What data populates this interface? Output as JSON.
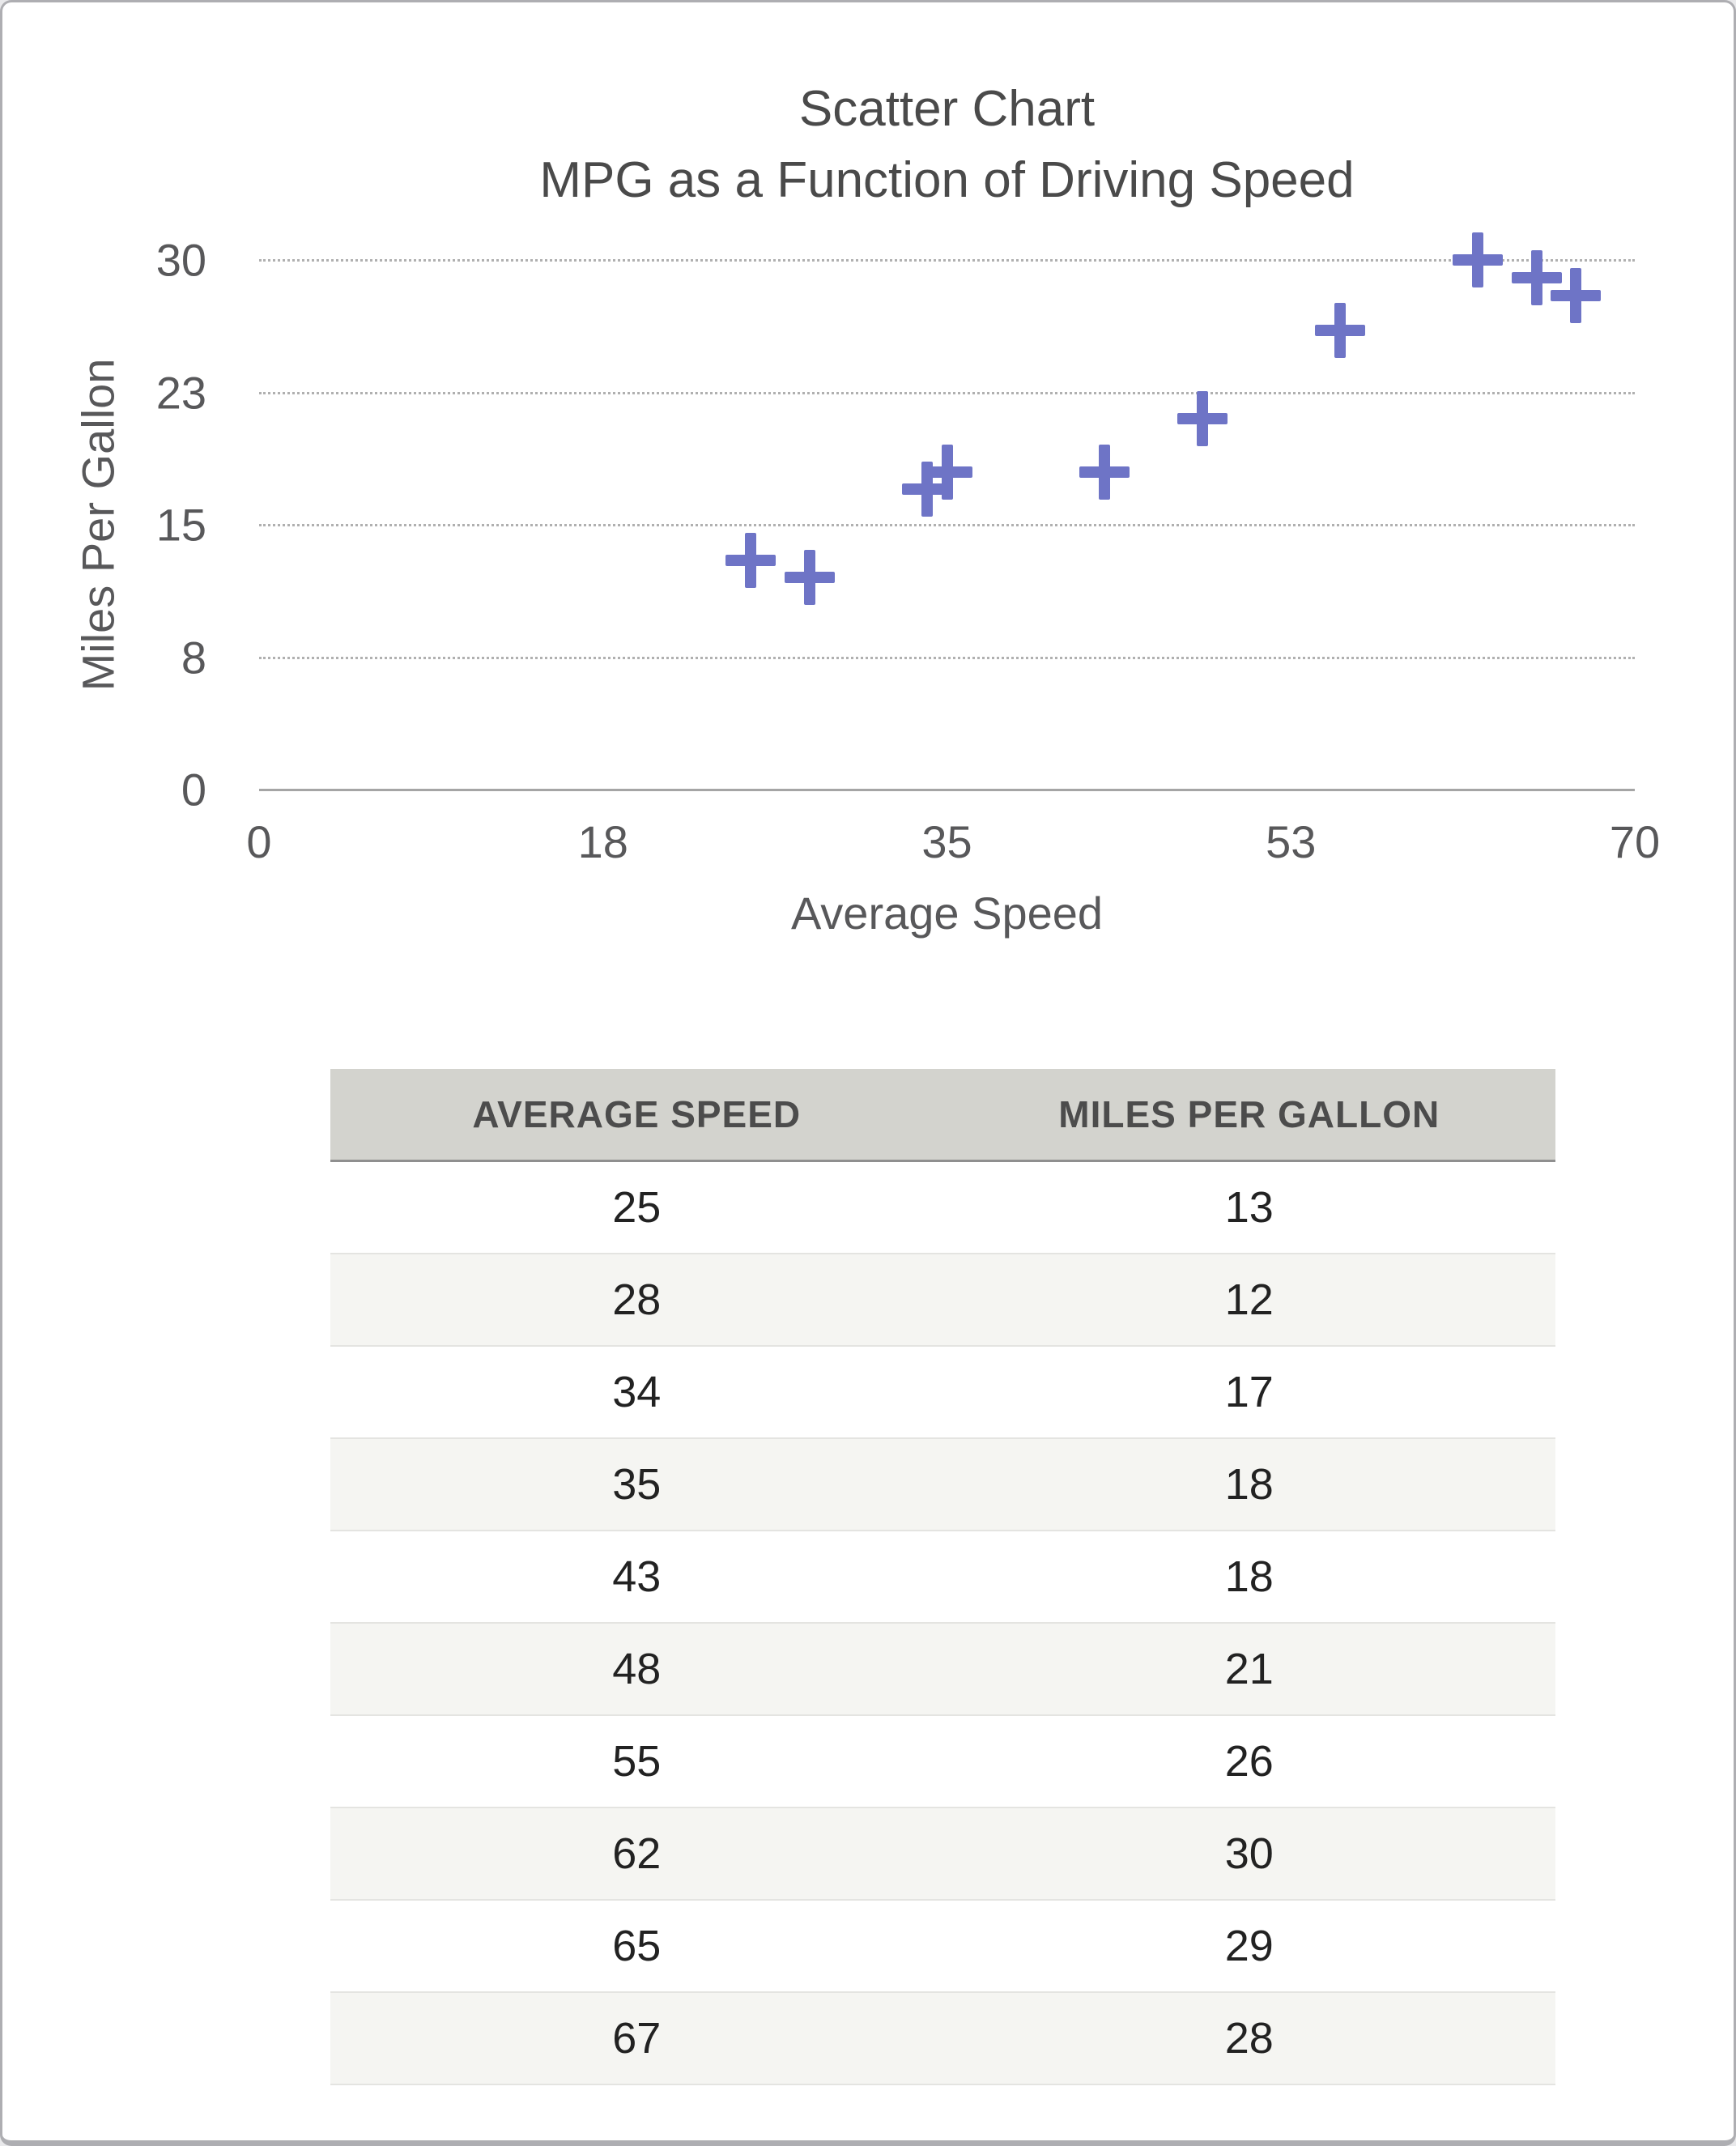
{
  "chart_data": {
    "type": "scatter",
    "title": "Scatter Chart",
    "subtitle": "MPG as a Function of Driving Speed",
    "xlabel": "Average Speed",
    "ylabel": "Miles Per Gallon",
    "xlim": [
      0,
      70
    ],
    "ylim": [
      0,
      30
    ],
    "x_ticks": [
      {
        "value": 0,
        "label": "0"
      },
      {
        "value": 17.5,
        "label": "18"
      },
      {
        "value": 35,
        "label": "35"
      },
      {
        "value": 52.5,
        "label": "53"
      },
      {
        "value": 70,
        "label": "70"
      }
    ],
    "y_ticks": [
      {
        "value": 0,
        "label": "0"
      },
      {
        "value": 7.5,
        "label": "8"
      },
      {
        "value": 15,
        "label": "15"
      },
      {
        "value": 22.5,
        "label": "23"
      },
      {
        "value": 30,
        "label": "30"
      }
    ],
    "grid": "horizontal-dotted",
    "legend": "none",
    "marker": "plus",
    "points": [
      {
        "x": 25,
        "y": 13
      },
      {
        "x": 28,
        "y": 12
      },
      {
        "x": 34,
        "y": 17
      },
      {
        "x": 35,
        "y": 18
      },
      {
        "x": 43,
        "y": 18
      },
      {
        "x": 48,
        "y": 21
      },
      {
        "x": 55,
        "y": 26
      },
      {
        "x": 62,
        "y": 30
      },
      {
        "x": 65,
        "y": 29
      },
      {
        "x": 67,
        "y": 28
      }
    ]
  },
  "table": {
    "headers": [
      "AVERAGE SPEED",
      "MILES PER GALLON"
    ],
    "rows": [
      [
        "25",
        "13"
      ],
      [
        "28",
        "12"
      ],
      [
        "34",
        "17"
      ],
      [
        "35",
        "18"
      ],
      [
        "43",
        "18"
      ],
      [
        "48",
        "21"
      ],
      [
        "55",
        "26"
      ],
      [
        "62",
        "30"
      ],
      [
        "65",
        "29"
      ],
      [
        "67",
        "28"
      ]
    ]
  },
  "colors": {
    "marker": "#6E74C6",
    "grid": "#B0B0B0",
    "axis": "#A5A5A5",
    "title_text": "#4A4A4A",
    "tick_text": "#58585A",
    "header_bg": "#D3D3CE",
    "header_text": "#4C4C4C",
    "header_border": "#8F8F8F",
    "row_alt_bg": "#F5F5F2",
    "row_border": "#E4E4E1",
    "cell_text": "#222222",
    "window_border": "#AEAEB2"
  }
}
